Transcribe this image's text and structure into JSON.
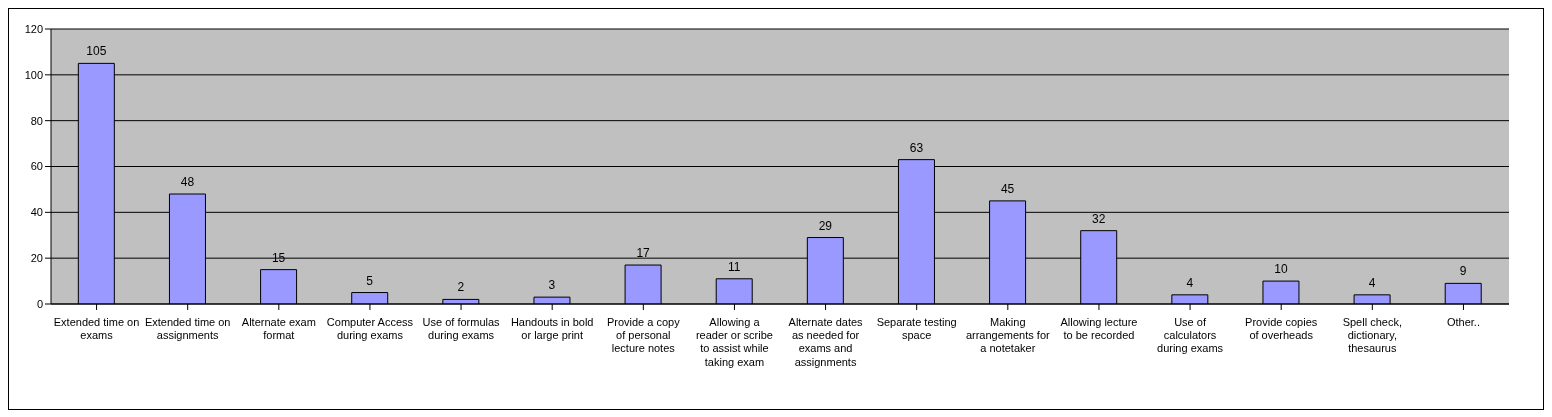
{
  "chart_data": {
    "type": "bar",
    "categories": [
      "Extended time on exams",
      "Extended time on assignments",
      "Alternate exam format",
      "Computer Access during exams",
      "Use of formulas during exams",
      "Handouts in bold or large print",
      "Provide a copy of personal lecture notes",
      "Allowing a reader or scribe to assist while taking exam",
      "Alternate dates as needed for exams and assignments",
      "Separate testing space",
      "Making arrangements for a notetaker",
      "Allowing lecture to be recorded",
      "Use of calculators during exams",
      "Provide copies of overheads",
      "Spell check, dictionary, thesaurus",
      "Other.."
    ],
    "values": [
      105,
      48,
      15,
      5,
      2,
      3,
      17,
      11,
      29,
      63,
      45,
      32,
      4,
      10,
      4,
      9
    ],
    "color": "#9999ff",
    "ylim": [
      0,
      120
    ],
    "yticks": [
      0,
      20,
      40,
      60,
      80,
      100,
      120
    ],
    "grid": "y",
    "data_labels": true
  }
}
